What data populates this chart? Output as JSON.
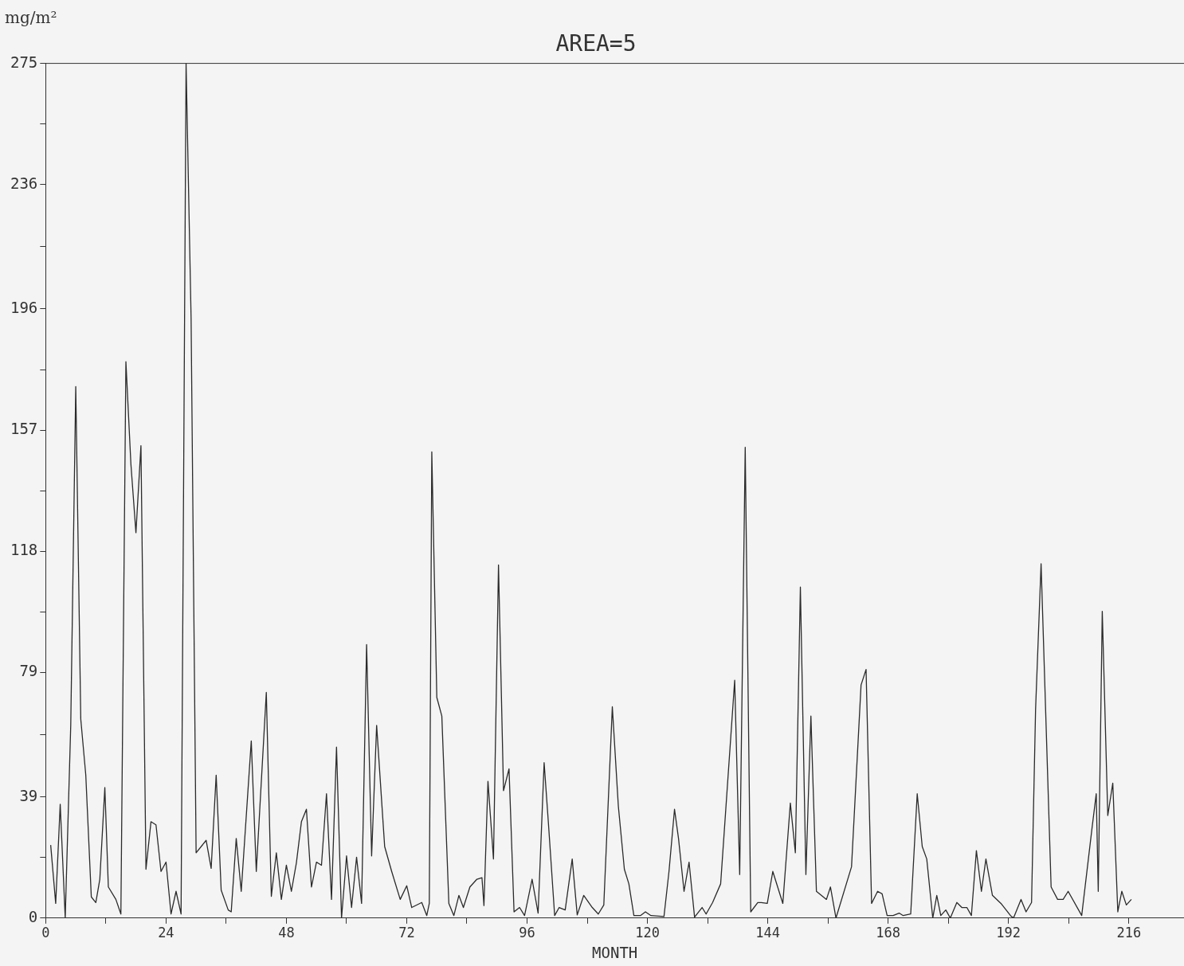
{
  "chart_data": {
    "type": "line",
    "title": "AREA=5",
    "xlabel": "MONTH",
    "ylabel": "mg/m²",
    "x": [
      1,
      2,
      2.9,
      3.9,
      5,
      6,
      7,
      8,
      9.1,
      10,
      10.8,
      11.8,
      12.5,
      14,
      15,
      16,
      17,
      18,
      19,
      20,
      21,
      22,
      23,
      24,
      25,
      26,
      27,
      28,
      29,
      30,
      32,
      33,
      34,
      35,
      36.4,
      37,
      38,
      39,
      41,
      42,
      44,
      45,
      46,
      47,
      48,
      49,
      50,
      51,
      52,
      53,
      54,
      55,
      56,
      57,
      58,
      59,
      60,
      61,
      62,
      63,
      64,
      65,
      66,
      67.6,
      69,
      70.7,
      72,
      73,
      75,
      76,
      76.5,
      77,
      78,
      79,
      80.4,
      81.4,
      82.4,
      83.3,
      84.6,
      86,
      87,
      87.4,
      88.2,
      89.3,
      90.3,
      91.3,
      92.4,
      93.4,
      94.5,
      95.5,
      97,
      98.2,
      99.4,
      100.3,
      101.5,
      102.4,
      103.6,
      105,
      106,
      107.3,
      109,
      110.2,
      111.3,
      113,
      114.2,
      115.4,
      116.3,
      117.3,
      118.6,
      119.6,
      120.7,
      123.3,
      124.3,
      125.4,
      126.2,
      127.3,
      128.3,
      129.4,
      130.9,
      131.7,
      133,
      134.6,
      137.4,
      138.4,
      139.5,
      140.6,
      142,
      142.7,
      143.9,
      145,
      147,
      148.5,
      149.5,
      150.5,
      151.6,
      152.6,
      153.7,
      155.7,
      156.5,
      157.6,
      160.7,
      162.6,
      163.6,
      164.7,
      165.9,
      166.8,
      167.8,
      169,
      170.2,
      171,
      172.5,
      173.8,
      174.8,
      175.7,
      176.9,
      177.7,
      178.5,
      179.5,
      180.4,
      181.7,
      182.7,
      183.7,
      184.6,
      185.6,
      186.6,
      187.5,
      188.8,
      190.5,
      192.4,
      193,
      194.5,
      195.5,
      196.6,
      197.4,
      198.5,
      200.5,
      201.8,
      202.9,
      203.9,
      206.6,
      208.7,
      209.5,
      209.9,
      210.7,
      211.8,
      212.8,
      213.8,
      214.6,
      215.5,
      216.5
    ],
    "values": [
      23.5,
      4.7,
      36.6,
      0,
      62,
      171,
      64,
      46,
      6.8,
      5,
      12.5,
      42,
      10,
      6,
      1.3,
      179,
      146,
      124,
      152,
      15.7,
      31,
      30,
      15,
      18,
      1.3,
      8.6,
      1.3,
      275,
      193,
      21,
      25,
      16,
      46,
      9,
      2.6,
      2,
      25.6,
      8.6,
      57,
      15,
      72.6,
      7,
      21,
      6,
      17,
      8.6,
      17.8,
      31,
      35,
      10,
      18,
      17,
      40,
      6,
      55,
      0,
      20,
      3.4,
      19.6,
      4.7,
      88,
      20,
      62,
      23,
      15,
      6,
      10.4,
      3.4,
      5,
      0.8,
      4.7,
      150,
      71,
      65,
      4.7,
      0.8,
      7.3,
      3.4,
      10,
      12.5,
      13,
      4,
      44,
      19,
      113.6,
      41,
      48,
      2,
      3.4,
      0.8,
      12.5,
      1.6,
      50,
      29.5,
      0.8,
      3.4,
      2.6,
      19,
      1,
      7.3,
      3.4,
      1.3,
      4.2,
      68,
      36,
      15.7,
      11,
      0.8,
      0.8,
      2,
      0.8,
      0.5,
      15,
      35,
      25.6,
      8.6,
      18,
      0.3,
      3.4,
      1.3,
      5,
      11,
      76.5,
      14,
      151.5,
      2,
      5,
      5,
      4.7,
      15,
      4.7,
      37,
      21,
      106.5,
      14,
      65,
      8.6,
      6,
      10,
      0,
      16.5,
      75,
      80,
      4.7,
      8.6,
      7.8,
      0.8,
      0.8,
      1.6,
      0.8,
      1.3,
      40,
      23,
      19,
      0,
      7.3,
      0.8,
      2.6,
      0,
      5,
      3.4,
      3.4,
      0.8,
      21.7,
      8.6,
      19,
      7.3,
      4.7,
      0.8,
      0,
      6,
      2,
      5,
      67,
      114,
      10,
      6,
      6,
      8.6,
      0.8,
      29.5,
      40,
      8.6,
      98.7,
      33,
      43.4,
      2,
      8.6,
      4.2,
      6
    ],
    "color": "#2a2a2a",
    "marker": "none",
    "line_style": "solid",
    "grid": false,
    "legend": false,
    "xlim": [
      0,
      227
    ],
    "xticks": [
      0,
      {
        "value": 12,
        "label": null
      },
      24,
      {
        "value": 36,
        "label": null
      },
      48,
      {
        "value": 60,
        "label": null
      },
      72,
      {
        "value": 84,
        "label": null
      },
      96,
      {
        "value": 108,
        "label": null
      },
      120,
      {
        "value": 132,
        "label": null
      },
      144,
      {
        "value": 156,
        "label": null
      },
      168,
      {
        "value": 180,
        "label": null
      },
      192,
      {
        "value": 204,
        "label": null
      },
      216
    ],
    "ylim": [
      0,
      275
    ],
    "yticks": [
      0,
      {
        "value": 19.5,
        "label": null
      },
      39,
      {
        "value": 59,
        "label": null
      },
      79,
      {
        "value": 98.5,
        "label": null
      },
      118,
      {
        "value": 137.5,
        "label": null
      },
      157,
      {
        "value": 176.5,
        "label": null
      },
      196,
      {
        "value": 216,
        "label": null
      },
      236,
      {
        "value": 255.5,
        "label": null
      },
      275
    ]
  }
}
